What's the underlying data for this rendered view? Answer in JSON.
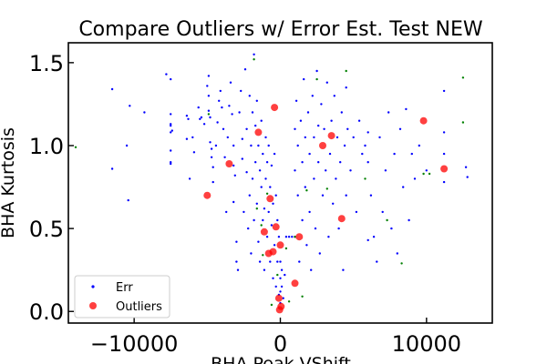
{
  "chart_data": {
    "type": "scatter",
    "title": "Compare Outliers w/ Error Est. Test NEW",
    "xlabel": "BHA Peak VShift",
    "ylabel": "BHA Kurtosis",
    "xlim": [
      -14500,
      14500
    ],
    "ylim": [
      -0.07,
      1.62
    ],
    "xticks": [
      -10000,
      0,
      10000
    ],
    "xtick_labels": [
      "−10000",
      "0",
      "10000"
    ],
    "yticks": [
      0.0,
      0.5,
      1.0,
      1.5
    ],
    "ytick_labels": [
      "0.0",
      "0.5",
      "1.0",
      "1.5"
    ],
    "grid": false,
    "legend_position": "lower-left",
    "colors": {
      "err": "#0000ff",
      "secondary": "#008000",
      "outliers": "#ff0000"
    },
    "series": [
      {
        "name": "Outliers",
        "style": "large-red-circle",
        "points": [
          [
            -5000,
            0.7
          ],
          [
            -3500,
            0.89
          ],
          [
            -1500,
            1.08
          ],
          [
            -400,
            1.23
          ],
          [
            -1100,
            0.48
          ],
          [
            -700,
            0.68
          ],
          [
            -300,
            0.51
          ],
          [
            -800,
            0.35
          ],
          [
            -500,
            0.36
          ],
          [
            0,
            0.4
          ],
          [
            1300,
            0.45
          ],
          [
            2900,
            1.0
          ],
          [
            3500,
            1.06
          ],
          [
            4200,
            0.56
          ],
          [
            9800,
            1.15
          ],
          [
            11200,
            0.86
          ],
          [
            1000,
            0.17
          ],
          [
            -100,
            0.08
          ],
          [
            -50,
            0.01
          ],
          [
            50,
            0.03
          ]
        ]
      },
      {
        "name": "Err",
        "style": "small-blue-dot",
        "points": [
          [
            -11500,
            1.34
          ],
          [
            -11500,
            0.86
          ],
          [
            -10500,
            1.0
          ],
          [
            -10300,
            1.24
          ],
          [
            -9300,
            1.2
          ],
          [
            -10400,
            0.67
          ],
          [
            -7500,
            1.19
          ],
          [
            -7500,
            1.12
          ],
          [
            -7500,
            1.08
          ],
          [
            -7500,
            1.13
          ],
          [
            -7500,
            0.97
          ],
          [
            -7500,
            0.89
          ],
          [
            -7500,
            0.9
          ],
          [
            -7800,
            1.43
          ],
          [
            -7500,
            1.4
          ],
          [
            -7400,
            1.09
          ],
          [
            -6400,
            1.04
          ],
          [
            -6400,
            1.18
          ],
          [
            -6300,
            1.16
          ],
          [
            -6000,
            1.05
          ],
          [
            -5900,
            0.96
          ],
          [
            -5600,
            1.23
          ],
          [
            -5500,
            1.16
          ],
          [
            -5400,
            1.17
          ],
          [
            -5200,
            1.13
          ],
          [
            -4900,
            1.21
          ],
          [
            -5000,
            1.36
          ],
          [
            -4900,
            1.42
          ],
          [
            -4900,
            1.3
          ],
          [
            -4800,
            1.17
          ],
          [
            -4800,
            1.02
          ],
          [
            -4700,
            0.98
          ],
          [
            -4700,
            0.93
          ],
          [
            -4600,
            0.87
          ],
          [
            -4600,
            0.78
          ],
          [
            -4400,
            1.0
          ],
          [
            -4300,
            1.14
          ],
          [
            -4200,
            1.27
          ],
          [
            -4100,
            1.33
          ],
          [
            -4000,
            1.23
          ],
          [
            -3900,
            1.1
          ],
          [
            -3800,
            0.93
          ],
          [
            -3700,
            0.6
          ],
          [
            -3600,
            1.05
          ],
          [
            -3500,
            1.24
          ],
          [
            -3400,
            1.38
          ],
          [
            -3300,
            1.19
          ],
          [
            -3200,
            1.0
          ],
          [
            -3200,
            0.88
          ],
          [
            -3100,
            0.82
          ],
          [
            -3000,
            0.42
          ],
          [
            -3000,
            0.3
          ],
          [
            -2900,
            0.25
          ],
          [
            -2800,
            1.2
          ],
          [
            -2700,
            1.33
          ],
          [
            -2600,
            1.04
          ],
          [
            -2600,
            0.92
          ],
          [
            -2500,
            0.6
          ],
          [
            -2400,
            1.46
          ],
          [
            -2300,
            1.1
          ],
          [
            -2300,
            0.84
          ],
          [
            -2200,
            0.5
          ],
          [
            -2100,
            1.3
          ],
          [
            -2100,
            0.7
          ],
          [
            -2000,
            1.0
          ],
          [
            -2000,
            0.35
          ],
          [
            -1900,
            1.2
          ],
          [
            -1900,
            0.8
          ],
          [
            -1800,
            1.55
          ],
          [
            -1800,
            0.55
          ],
          [
            -1700,
            1.12
          ],
          [
            -1700,
            0.9
          ],
          [
            -1600,
            1.27
          ],
          [
            -1600,
            0.65
          ],
          [
            -1500,
            1.0
          ],
          [
            -1500,
            0.42
          ],
          [
            -1400,
            0.85
          ],
          [
            -1400,
            0.3
          ],
          [
            -1300,
            1.15
          ],
          [
            -1300,
            0.75
          ],
          [
            -1200,
            0.95
          ],
          [
            -1200,
            0.55
          ],
          [
            -1100,
            0.62
          ],
          [
            -1100,
            0.25
          ],
          [
            -1000,
            1.05
          ],
          [
            -1000,
            0.8
          ],
          [
            -900,
            0.45
          ],
          [
            -900,
            0.9
          ],
          [
            -800,
            0.6
          ],
          [
            -800,
            1.0
          ],
          [
            -700,
            0.3
          ],
          [
            -700,
            0.75
          ],
          [
            -600,
            0.52
          ],
          [
            -600,
            0.88
          ],
          [
            -500,
            0.2
          ],
          [
            -500,
            0.65
          ],
          [
            -400,
            0.4
          ],
          [
            -400,
            0.95
          ],
          [
            -300,
            0.15
          ],
          [
            -300,
            0.7
          ],
          [
            -200,
            0.3
          ],
          [
            -200,
            0.55
          ],
          [
            -100,
            0.1
          ],
          [
            -100,
            0.45
          ],
          [
            0,
            0.05
          ],
          [
            0,
            0.2
          ],
          [
            0,
            0.3
          ],
          [
            0,
            0.12
          ],
          [
            100,
            0.15
          ],
          [
            100,
            0.25
          ],
          [
            200,
            0.08
          ],
          [
            300,
            0.22
          ],
          [
            400,
            0.45
          ],
          [
            600,
            0.45
          ],
          [
            800,
            0.45
          ],
          [
            1000,
            0.45
          ],
          [
            1000,
            0.85
          ],
          [
            1000,
            1.1
          ],
          [
            1100,
            1.27
          ],
          [
            1200,
            1.0
          ],
          [
            1200,
            0.7
          ],
          [
            1300,
            0.3
          ],
          [
            1400,
            1.15
          ],
          [
            1500,
            0.9
          ],
          [
            1500,
            0.55
          ],
          [
            1600,
            1.4
          ],
          [
            1700,
            1.05
          ],
          [
            1700,
            0.75
          ],
          [
            1800,
            0.4
          ],
          [
            1900,
            1.2
          ],
          [
            2000,
            0.95
          ],
          [
            2000,
            0.6
          ],
          [
            2100,
            0.25
          ],
          [
            2200,
            1.3
          ],
          [
            2300,
            1.05
          ],
          [
            2300,
            0.8
          ],
          [
            2400,
            0.5
          ],
          [
            2500,
            1.45
          ],
          [
            2600,
            1.12
          ],
          [
            2600,
            0.9
          ],
          [
            2700,
            0.35
          ],
          [
            2800,
            1.25
          ],
          [
            2900,
            0.7
          ],
          [
            3000,
            1.1
          ],
          [
            3100,
            0.85
          ],
          [
            3200,
            1.38
          ],
          [
            3300,
            0.45
          ],
          [
            3400,
            0.95
          ],
          [
            3500,
            1.15
          ],
          [
            3600,
            0.65
          ],
          [
            3700,
            1.3
          ],
          [
            3800,
            0.8
          ],
          [
            3900,
            1.05
          ],
          [
            4000,
            0.5
          ],
          [
            4100,
            0.9
          ],
          [
            4200,
            1.2
          ],
          [
            4300,
            0.25
          ],
          [
            4400,
            1.0
          ],
          [
            4500,
            0.7
          ],
          [
            4600,
            1.1
          ],
          [
            4800,
            0.85
          ],
          [
            5000,
            1.05
          ],
          [
            5200,
            0.6
          ],
          [
            5400,
            1.15
          ],
          [
            5600,
            0.95
          ],
          [
            5800,
            1.0
          ],
          [
            6000,
            0.9
          ],
          [
            6000,
            1.08
          ],
          [
            6200,
            0.7
          ],
          [
            6400,
            0.45
          ],
          [
            6600,
            0.3
          ],
          [
            6800,
            1.05
          ],
          [
            7000,
            0.6
          ],
          [
            7200,
            0.85
          ],
          [
            7400,
            1.2
          ],
          [
            7600,
            0.5
          ],
          [
            7800,
            0.95
          ],
          [
            8000,
            0.35
          ],
          [
            8200,
            1.1
          ],
          [
            8400,
            0.75
          ],
          [
            8600,
            1.22
          ],
          [
            8800,
            0.55
          ],
          [
            9000,
            0.95
          ],
          [
            9200,
            0.8
          ],
          [
            9500,
            1.0
          ],
          [
            10000,
            0.85
          ],
          [
            11200,
            1.33
          ],
          [
            11200,
            1.08
          ],
          [
            11200,
            0.95
          ],
          [
            11200,
            0.78
          ],
          [
            12700,
            0.87
          ],
          [
            12800,
            0.81
          ],
          [
            4500,
            1.35
          ],
          [
            6000,
            0.43
          ],
          [
            -6200,
            0.8
          ],
          [
            -3200,
            0.66
          ]
        ]
      },
      {
        "name": "",
        "style": "small-green-dot",
        "points": [
          [
            -14000,
            0.99
          ],
          [
            -4900,
            1.19
          ],
          [
            -1800,
            1.52
          ],
          [
            -1600,
            0.62
          ],
          [
            -1300,
            0.52
          ],
          [
            -900,
            0.71
          ],
          [
            -200,
            0.22
          ],
          [
            400,
            0.38
          ],
          [
            1000,
            0.45
          ],
          [
            1500,
            0.09
          ],
          [
            1800,
            0.73
          ],
          [
            2500,
            1.4
          ],
          [
            3200,
            0.74
          ],
          [
            4500,
            1.45
          ],
          [
            5800,
            0.8
          ],
          [
            7300,
            0.55
          ],
          [
            8300,
            0.29
          ],
          [
            9800,
            0.83
          ],
          [
            10200,
            0.83
          ],
          [
            12500,
            1.41
          ],
          [
            12500,
            1.14
          ],
          [
            -600,
            0.04
          ],
          [
            -1200,
            0.34
          ],
          [
            600,
            0.06
          ]
        ]
      }
    ]
  },
  "legend": [
    {
      "label": "Err"
    },
    {
      "label": "Outliers"
    }
  ]
}
